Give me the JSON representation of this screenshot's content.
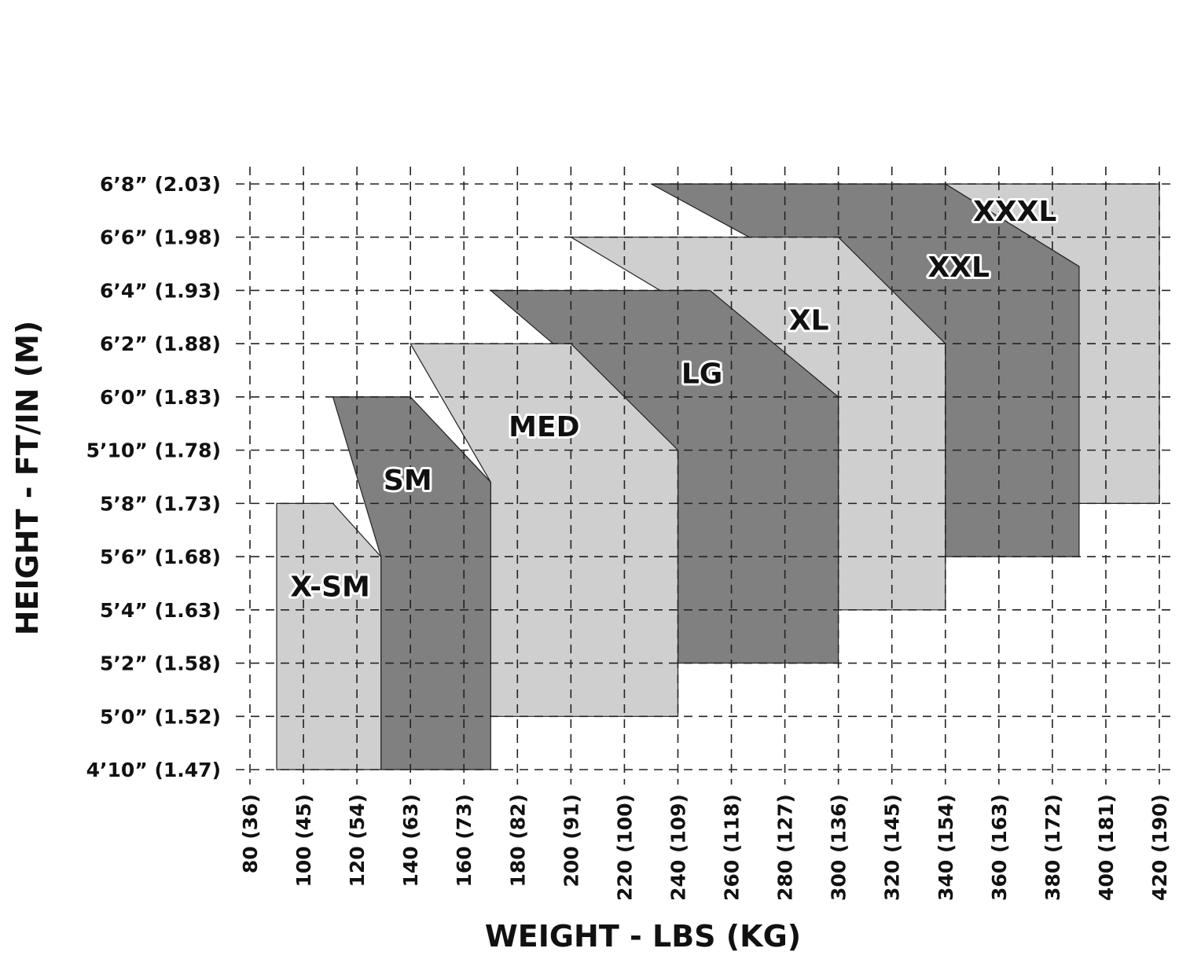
{
  "chart_data": {
    "type": "area",
    "xlabel": "WEIGHT - LBS (KG)",
    "ylabel": "HEIGHT - FT/IN (M)",
    "xlim": [
      80,
      420
    ],
    "ylim": [
      58,
      80
    ],
    "grid": true,
    "x_ticks": [
      {
        "value": 80,
        "label": "80 (36)"
      },
      {
        "value": 100,
        "label": "100 (45)"
      },
      {
        "value": 120,
        "label": "120 (54)"
      },
      {
        "value": 140,
        "label": "140 (63)"
      },
      {
        "value": 160,
        "label": "160 (73)"
      },
      {
        "value": 180,
        "label": "180 (82)"
      },
      {
        "value": 200,
        "label": "200 (91)"
      },
      {
        "value": 220,
        "label": "220 (100)"
      },
      {
        "value": 240,
        "label": "240 (109)"
      },
      {
        "value": 260,
        "label": "260 (118)"
      },
      {
        "value": 280,
        "label": "280 (127)"
      },
      {
        "value": 300,
        "label": "300 (136)"
      },
      {
        "value": 320,
        "label": "320 (145)"
      },
      {
        "value": 340,
        "label": "340 (154)"
      },
      {
        "value": 360,
        "label": "360 (163)"
      },
      {
        "value": 380,
        "label": "380 (172)"
      },
      {
        "value": 400,
        "label": "400 (181)"
      },
      {
        "value": 420,
        "label": "420 (190)"
      }
    ],
    "y_ticks": [
      {
        "value": 80,
        "label": "6’8” (2.03)"
      },
      {
        "value": 78,
        "label": "6’6” (1.98)"
      },
      {
        "value": 76,
        "label": "6’4” (1.93)"
      },
      {
        "value": 74,
        "label": "6’2” (1.88)"
      },
      {
        "value": 72,
        "label": "6’0” (1.83)"
      },
      {
        "value": 70,
        "label": "5’10” (1.78)"
      },
      {
        "value": 68,
        "label": "5’8” (1.73)"
      },
      {
        "value": 66,
        "label": "5’6” (1.68)"
      },
      {
        "value": 64,
        "label": "5’4” (1.63)"
      },
      {
        "value": 62,
        "label": "5’2” (1.58)"
      },
      {
        "value": 60,
        "label": "5’0” (1.52)"
      },
      {
        "value": 58,
        "label": "4’10” (1.47)"
      }
    ],
    "series": [
      {
        "name": "XXXL",
        "color": "#cfcfcf",
        "label_at": [
          366,
          79.0
        ],
        "polygon": [
          [
            340,
            80
          ],
          [
            420,
            80
          ],
          [
            420,
            68
          ],
          [
            390,
            68
          ],
          [
            390,
            76.9
          ]
        ]
      },
      {
        "name": "XXL",
        "color": "#808080",
        "label_at": [
          345,
          76.9
        ],
        "polygon": [
          [
            230,
            80
          ],
          [
            340,
            80
          ],
          [
            390,
            76.9
          ],
          [
            390,
            66
          ],
          [
            340,
            66
          ],
          [
            340,
            74
          ]
        ]
      },
      {
        "name": "XL",
        "color": "#cfcfcf",
        "label_at": [
          289,
          74.9
        ],
        "polygon": [
          [
            200,
            78
          ],
          [
            300,
            78
          ],
          [
            340,
            74
          ],
          [
            340,
            64
          ],
          [
            300,
            64
          ],
          [
            300,
            72
          ]
        ]
      },
      {
        "name": "LG",
        "color": "#808080",
        "label_at": [
          249,
          72.9
        ],
        "polygon": [
          [
            170,
            76
          ],
          [
            252,
            76
          ],
          [
            300,
            72
          ],
          [
            300,
            62
          ],
          [
            240,
            62
          ],
          [
            240,
            70
          ]
        ]
      },
      {
        "name": "MED",
        "color": "#cfcfcf",
        "label_at": [
          190,
          70.9
        ],
        "polygon": [
          [
            140,
            74
          ],
          [
            200,
            74
          ],
          [
            240,
            70
          ],
          [
            240,
            60
          ],
          [
            170,
            60
          ],
          [
            170,
            68.8
          ]
        ]
      },
      {
        "name": "SM",
        "color": "#808080",
        "label_at": [
          139,
          68.9
        ],
        "polygon": [
          [
            111,
            72
          ],
          [
            140,
            72
          ],
          [
            170,
            68.8
          ],
          [
            170,
            58
          ],
          [
            129,
            58
          ],
          [
            129,
            66
          ]
        ]
      },
      {
        "name": "X-SM",
        "color": "#cfcfcf",
        "label_at": [
          110,
          64.9
        ],
        "polygon": [
          [
            90,
            68
          ],
          [
            111,
            68
          ],
          [
            129,
            66
          ],
          [
            129,
            58
          ],
          [
            90,
            58
          ]
        ]
      }
    ]
  }
}
